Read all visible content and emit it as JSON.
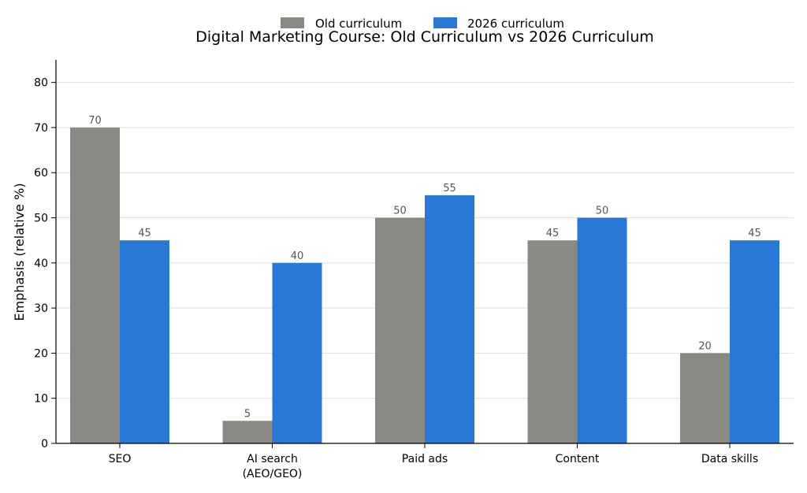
{
  "chart_data": {
    "type": "bar",
    "title": "Digital Marketing Course: Old Curriculum vs 2026 Curriculum",
    "xlabel": "",
    "ylabel": "Emphasis (relative %)",
    "categories": [
      [
        "SEO"
      ],
      [
        "AI search",
        "(AEO/GEO)"
      ],
      [
        "Paid ads"
      ],
      [
        "Content"
      ],
      [
        "Data skills"
      ]
    ],
    "series": [
      {
        "name": "Old curriculum",
        "color": "#8a8983",
        "values": [
          70,
          5,
          50,
          45,
          20
        ]
      },
      {
        "name": "2026 curriculum",
        "color": "#2a78d6",
        "values": [
          45,
          40,
          55,
          50,
          45
        ]
      }
    ],
    "ylim": [
      0,
      85
    ],
    "yticks": [
      0,
      10,
      20,
      30,
      40,
      50,
      60,
      70,
      80
    ],
    "grid": "horizontal",
    "legend": "top-center"
  }
}
